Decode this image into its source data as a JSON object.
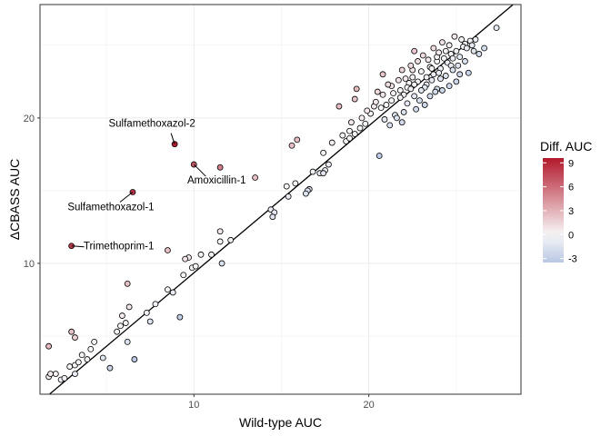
{
  "chart_data": {
    "type": "scatter",
    "title": "",
    "xlabel": "Wild-type AUC",
    "ylabel": "ΔCBASS  AUC",
    "xlim": [
      1.2,
      28.7
    ],
    "ylim": [
      1.0,
      27.8
    ],
    "x_ticks": [
      10,
      20
    ],
    "y_ticks": [
      10,
      20
    ],
    "x_tick_labels": [
      "10",
      "20"
    ],
    "y_tick_labels": [
      "10",
      "20"
    ],
    "grid": true,
    "fit_line": {
      "intercept": -0.76,
      "slope": 1.011
    },
    "color_scale": {
      "title": "Diff. AUC",
      "min": -3.5,
      "mid": 0,
      "max": 9.6,
      "low_color": "#b8c7e4",
      "mid_color": "#f8f8f8",
      "high_color": "#b2182b",
      "ticks": [
        9,
        6,
        3,
        0,
        -3
      ],
      "tick_labels": [
        "9",
        "6",
        "3",
        "0",
        "-3"
      ],
      "position": "right"
    },
    "annotations": [
      {
        "label": "Sulfamethoxazol-2",
        "x": 8.9,
        "y": 18.2
      },
      {
        "label": "Amoxicillin-1",
        "x": 10.0,
        "y": 16.8
      },
      {
        "label": "Sulfamethoxazol-1",
        "x": 6.5,
        "y": 14.9
      },
      {
        "label": "Trimethoprim-1",
        "x": 3.0,
        "y": 11.2
      }
    ],
    "points": [
      [
        8.9,
        18.2,
        9.3
      ],
      [
        10.0,
        16.8,
        6.8
      ],
      [
        6.5,
        14.9,
        8.4
      ],
      [
        3.0,
        11.2,
        8.2
      ],
      [
        11.5,
        16.6,
        5.1
      ],
      [
        13.5,
        15.9,
        2.4
      ],
      [
        8.5,
        10.9,
        2.4
      ],
      [
        6.2,
        8.6,
        2.4
      ],
      [
        1.7,
        4.3,
        2.6
      ],
      [
        3.2,
        4.9,
        1.7
      ],
      [
        15.6,
        18.1,
        2.5
      ],
      [
        15.9,
        18.5,
        2.6
      ],
      [
        18.3,
        20.8,
        2.5
      ],
      [
        19.3,
        22.0,
        2.7
      ],
      [
        19.2,
        21.3,
        2.1
      ],
      [
        20.8,
        23.0,
        2.2
      ],
      [
        22.6,
        24.6,
        2.0
      ],
      [
        22.5,
        23.3,
        0.8
      ],
      [
        21.3,
        22.2,
        0.9
      ],
      [
        22.1,
        22.7,
        0.6
      ],
      [
        1.8,
        2.4,
        0.6
      ],
      [
        2.1,
        2.4,
        0.3
      ],
      [
        1.7,
        2.2,
        0.5
      ],
      [
        2.4,
        2.0,
        -0.4
      ],
      [
        2.6,
        2.1,
        -0.5
      ],
      [
        2.9,
        2.9,
        0
      ],
      [
        3.2,
        3.0,
        -0.2
      ],
      [
        3.4,
        3.2,
        -0.2
      ],
      [
        3.2,
        2.4,
        -0.8
      ],
      [
        3.0,
        5.3,
        2.3
      ],
      [
        3.6,
        3.7,
        0.1
      ],
      [
        3.9,
        3.4,
        -0.5
      ],
      [
        4.1,
        4.1,
        0
      ],
      [
        4.3,
        4.6,
        0.3
      ],
      [
        4.8,
        3.5,
        -1.3
      ],
      [
        5.6,
        5.3,
        -0.3
      ],
      [
        5.8,
        5.7,
        -0.1
      ],
      [
        5.9,
        6.4,
        0.5
      ],
      [
        6.1,
        5.9,
        -0.2
      ],
      [
        6.3,
        7.0,
        0.7
      ],
      [
        6.2,
        4.6,
        -1.6
      ],
      [
        6.6,
        3.4,
        -3.2
      ],
      [
        5.2,
        2.8,
        -2.4
      ],
      [
        7.3,
        6.6,
        -0.7
      ],
      [
        7.8,
        7.2,
        -0.6
      ],
      [
        7.5,
        6.0,
        -1.5
      ],
      [
        8.5,
        8.2,
        -0.3
      ],
      [
        8.8,
        8.0,
        -0.8
      ],
      [
        9.2,
        6.3,
        -2.9
      ],
      [
        9.4,
        9.2,
        -0.2
      ],
      [
        9.7,
        10.4,
        0.7
      ],
      [
        9.5,
        10.3,
        0.8
      ],
      [
        10.1,
        9.8,
        -0.3
      ],
      [
        9.9,
        9.7,
        -0.2
      ],
      [
        10.4,
        10.6,
        0.2
      ],
      [
        11.0,
        10.6,
        -0.4
      ],
      [
        11.5,
        11.5,
        0
      ],
      [
        11.6,
        10.0,
        -1.6
      ],
      [
        11.5,
        12.2,
        0.7
      ],
      [
        12.1,
        11.6,
        -0.5
      ],
      [
        14.4,
        13.7,
        -0.7
      ],
      [
        14.5,
        13.2,
        -1.3
      ],
      [
        14.6,
        13.5,
        -0.9
      ],
      [
        15.3,
        15.3,
        0
      ],
      [
        15.4,
        14.6,
        -0.8
      ],
      [
        15.8,
        15.5,
        -0.3
      ],
      [
        16.4,
        14.8,
        -1.6
      ],
      [
        16.6,
        15.1,
        -1.5
      ],
      [
        16.5,
        15.0,
        -1.5
      ],
      [
        16.8,
        16.3,
        -0.5
      ],
      [
        17.2,
        16.2,
        -1.0
      ],
      [
        17.4,
        16.2,
        -1.2
      ],
      [
        17.5,
        16.4,
        -1.1
      ],
      [
        17.7,
        16.8,
        -0.9
      ],
      [
        17.4,
        17.6,
        0.2
      ],
      [
        17.9,
        18.3,
        0.4
      ],
      [
        18.5,
        18.8,
        0.3
      ],
      [
        18.7,
        18.4,
        -0.3
      ],
      [
        18.9,
        19.1,
        0.2
      ],
      [
        19.2,
        18.9,
        -0.3
      ],
      [
        19.5,
        19.3,
        -0.2
      ],
      [
        19.8,
        19.6,
        -0.2
      ],
      [
        20.1,
        20.3,
        0.2
      ],
      [
        20.3,
        20.8,
        0.5
      ],
      [
        20.6,
        17.4,
        -3.2
      ],
      [
        21.0,
        20.9,
        -0.1
      ],
      [
        21.3,
        21.2,
        -0.1
      ],
      [
        21.5,
        20.2,
        -1.3
      ],
      [
        21.8,
        21.9,
        0.1
      ],
      [
        22.0,
        21.6,
        -0.4
      ],
      [
        22.3,
        22.4,
        0.1
      ],
      [
        22.5,
        22.8,
        0.3
      ],
      [
        22.8,
        22.5,
        -0.3
      ],
      [
        23.0,
        23.2,
        0.2
      ],
      [
        23.2,
        22.1,
        -1.1
      ],
      [
        23.5,
        23.5,
        0
      ],
      [
        23.7,
        23.0,
        -0.7
      ],
      [
        23.9,
        23.9,
        0
      ],
      [
        24.1,
        23.4,
        -0.7
      ],
      [
        24.3,
        24.1,
        -0.2
      ],
      [
        24.5,
        23.8,
        -0.7
      ],
      [
        24.7,
        24.4,
        -0.3
      ],
      [
        25.0,
        24.6,
        -0.4
      ],
      [
        25.2,
        24.2,
        -1.0
      ],
      [
        25.4,
        24.9,
        -0.5
      ],
      [
        25.6,
        24.8,
        -0.8
      ],
      [
        25.8,
        25.3,
        -0.5
      ],
      [
        26.0,
        24.6,
        -1.4
      ],
      [
        26.3,
        24.4,
        -1.9
      ],
      [
        26.6,
        24.8,
        -1.8
      ],
      [
        27.3,
        26.2,
        -1.1
      ],
      [
        22.2,
        21.0,
        -1.2
      ],
      [
        22.6,
        21.5,
        -1.1
      ],
      [
        23.0,
        21.9,
        -1.1
      ],
      [
        23.3,
        22.3,
        -1.0
      ],
      [
        23.6,
        22.6,
        -1.0
      ],
      [
        23.8,
        21.8,
        -2.0
      ],
      [
        24.1,
        22.7,
        -1.4
      ],
      [
        24.4,
        22.9,
        -1.5
      ],
      [
        24.8,
        23.3,
        -1.5
      ],
      [
        25.1,
        23.6,
        -1.5
      ],
      [
        25.5,
        23.9,
        -1.6
      ],
      [
        22.4,
        23.6,
        1.2
      ],
      [
        23.1,
        24.3,
        1.2
      ],
      [
        23.7,
        24.8,
        1.1
      ],
      [
        24.2,
        25.2,
        1.0
      ],
      [
        24.9,
        25.6,
        0.7
      ],
      [
        21.7,
        22.6,
        0.9
      ],
      [
        21.9,
        23.3,
        1.4
      ],
      [
        22.8,
        23.9,
        1.1
      ],
      [
        23.4,
        24.0,
        0.6
      ],
      [
        24.0,
        24.5,
        0.5
      ],
      [
        24.6,
        25.0,
        0.4
      ],
      [
        21.1,
        22.3,
        1.2
      ],
      [
        20.8,
        21.6,
        0.8
      ],
      [
        20.4,
        21.1,
        0.7
      ],
      [
        19.9,
        20.5,
        0.6
      ],
      [
        22.0,
        20.4,
        -1.6
      ],
      [
        22.9,
        21.2,
        -1.7
      ],
      [
        23.5,
        21.5,
        -2.0
      ],
      [
        24.2,
        21.9,
        -2.3
      ],
      [
        25.0,
        22.5,
        -2.5
      ],
      [
        25.7,
        23.1,
        -2.6
      ],
      [
        24.6,
        22.2,
        -2.4
      ],
      [
        23.9,
        22.0,
        -1.9
      ],
      [
        23.2,
        20.9,
        -2.3
      ],
      [
        22.7,
        20.6,
        -2.1
      ],
      [
        21.6,
        20.0,
        -1.6
      ],
      [
        21.9,
        19.7,
        -2.2
      ],
      [
        21.2,
        19.5,
        -1.7
      ],
      [
        20.9,
        19.9,
        -1.0
      ],
      [
        22.4,
        22.0,
        -0.4
      ],
      [
        23.6,
        23.4,
        -0.2
      ],
      [
        24.4,
        24.6,
        0.2
      ],
      [
        25.3,
        25.4,
        0.1
      ],
      [
        24.8,
        24.1,
        -0.7
      ],
      [
        23.9,
        24.2,
        0.3
      ],
      [
        22.6,
        22.3,
        -0.3
      ],
      [
        21.4,
        21.7,
        0.3
      ],
      [
        20.7,
        20.7,
        0
      ],
      [
        25.9,
        25.0,
        -0.9
      ],
      [
        26.1,
        25.4,
        -0.7
      ],
      [
        25.5,
        25.1,
        -0.4
      ],
      [
        24.0,
        23.1,
        -0.9
      ],
      [
        23.3,
        22.8,
        -0.5
      ],
      [
        22.2,
        22.1,
        -0.1
      ],
      [
        21.8,
        21.4,
        -0.4
      ],
      [
        20.5,
        21.8,
        1.3
      ],
      [
        19.6,
        20.0,
        0.4
      ],
      [
        18.9,
        18.6,
        -0.3
      ],
      [
        19.0,
        19.7,
        0.7
      ],
      [
        24.7,
        23.6,
        -1.1
      ],
      [
        25.2,
        23.0,
        -2.2
      ]
    ]
  }
}
